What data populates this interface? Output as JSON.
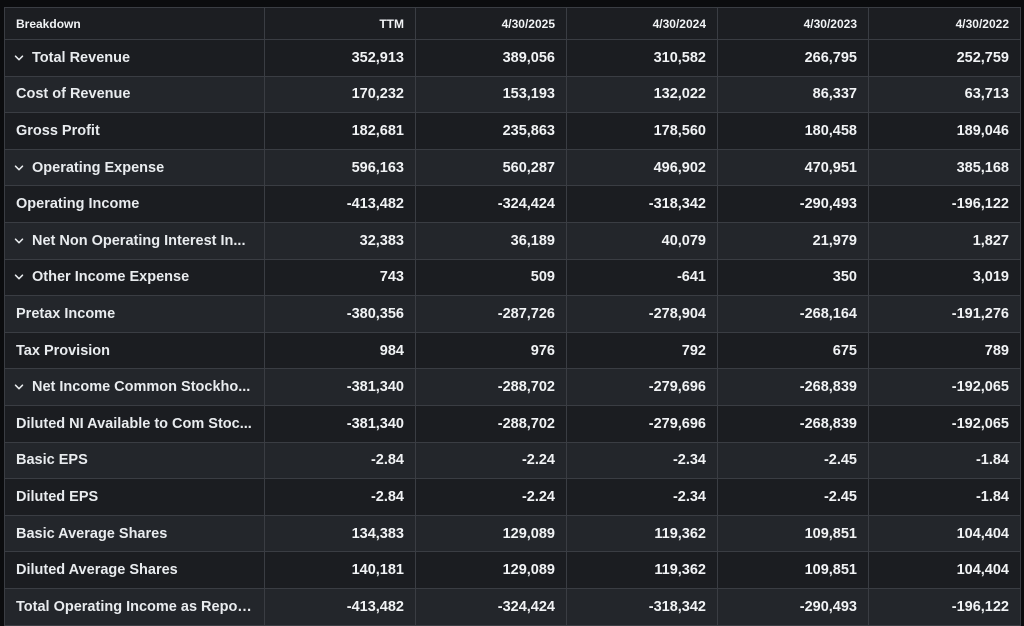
{
  "header": {
    "breakdown_label": "Breakdown",
    "columns": [
      "TTM",
      "4/30/2025",
      "4/30/2024",
      "4/30/2023",
      "4/30/2022"
    ]
  },
  "rows": [
    {
      "label": "Total Revenue",
      "expandable": true,
      "values": [
        "352,913",
        "389,056",
        "310,582",
        "266,795",
        "252,759"
      ]
    },
    {
      "label": "Cost of Revenue",
      "expandable": false,
      "values": [
        "170,232",
        "153,193",
        "132,022",
        "86,337",
        "63,713"
      ]
    },
    {
      "label": "Gross Profit",
      "expandable": false,
      "values": [
        "182,681",
        "235,863",
        "178,560",
        "180,458",
        "189,046"
      ]
    },
    {
      "label": "Operating Expense",
      "expandable": true,
      "values": [
        "596,163",
        "560,287",
        "496,902",
        "470,951",
        "385,168"
      ]
    },
    {
      "label": "Operating Income",
      "expandable": false,
      "values": [
        "-413,482",
        "-324,424",
        "-318,342",
        "-290,493",
        "-196,122"
      ]
    },
    {
      "label": "Net Non Operating Interest In...",
      "expandable": true,
      "values": [
        "32,383",
        "36,189",
        "40,079",
        "21,979",
        "1,827"
      ]
    },
    {
      "label": "Other Income Expense",
      "expandable": true,
      "values": [
        "743",
        "509",
        "-641",
        "350",
        "3,019"
      ]
    },
    {
      "label": "Pretax Income",
      "expandable": false,
      "values": [
        "-380,356",
        "-287,726",
        "-278,904",
        "-268,164",
        "-191,276"
      ]
    },
    {
      "label": "Tax Provision",
      "expandable": false,
      "values": [
        "984",
        "976",
        "792",
        "675",
        "789"
      ]
    },
    {
      "label": "Net Income Common Stockho...",
      "expandable": true,
      "values": [
        "-381,340",
        "-288,702",
        "-279,696",
        "-268,839",
        "-192,065"
      ]
    },
    {
      "label": "Diluted NI Available to Com Stoc...",
      "expandable": false,
      "values": [
        "-381,340",
        "-288,702",
        "-279,696",
        "-268,839",
        "-192,065"
      ]
    },
    {
      "label": "Basic EPS",
      "expandable": false,
      "values": [
        "-2.84",
        "-2.24",
        "-2.34",
        "-2.45",
        "-1.84"
      ]
    },
    {
      "label": "Diluted EPS",
      "expandable": false,
      "values": [
        "-2.84",
        "-2.24",
        "-2.34",
        "-2.45",
        "-1.84"
      ]
    },
    {
      "label": "Basic Average Shares",
      "expandable": false,
      "values": [
        "134,383",
        "129,089",
        "119,362",
        "109,851",
        "104,404"
      ]
    },
    {
      "label": "Diluted Average Shares",
      "expandable": false,
      "values": [
        "140,181",
        "129,089",
        "119,362",
        "109,851",
        "104,404"
      ]
    },
    {
      "label": "Total Operating Income as Repor...",
      "expandable": false,
      "values": [
        "-413,482",
        "-324,424",
        "-318,342",
        "-290,493",
        "-196,122"
      ]
    }
  ]
}
